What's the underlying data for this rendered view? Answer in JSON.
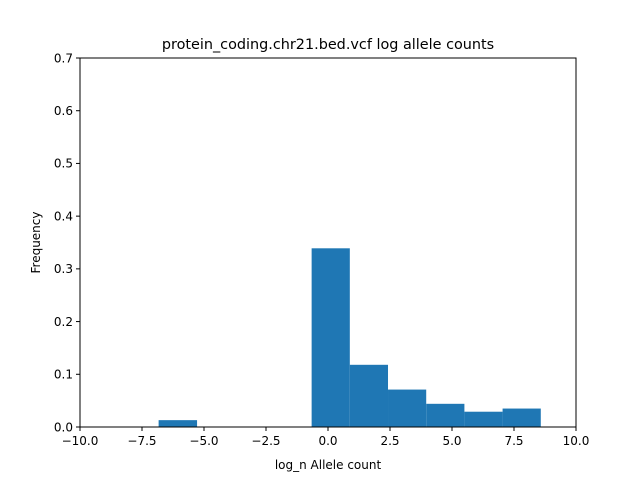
{
  "chart_data": {
    "type": "bar",
    "title": "protein_coding.chr21.bed.vcf log allele counts",
    "xlabel": "log_n Allele count",
    "ylabel": "Frequency",
    "xlim": [
      -10.0,
      10.0
    ],
    "ylim": [
      0.0,
      0.7
    ],
    "x_ticks": [
      -10.0,
      -7.5,
      -5.0,
      -2.5,
      0.0,
      2.5,
      5.0,
      7.5,
      10.0
    ],
    "x_tick_labels": [
      "−10.0",
      "−7.5",
      "−5.0",
      "−2.5",
      "0.0",
      "2.5",
      "5.0",
      "7.5",
      "10.0"
    ],
    "y_ticks": [
      0.0,
      0.1,
      0.2,
      0.3,
      0.4,
      0.5,
      0.6,
      0.7
    ],
    "y_tick_labels": [
      "0.0",
      "0.1",
      "0.2",
      "0.3",
      "0.4",
      "0.5",
      "0.6",
      "0.7"
    ],
    "grid": false,
    "bar_color": "#1f77b4",
    "bins": [
      {
        "x0": -6.83,
        "x1": -5.28,
        "value": 0.013
      },
      {
        "x0": -5.28,
        "x1": -3.74,
        "value": 0.0
      },
      {
        "x0": -3.74,
        "x1": -2.2,
        "value": 0.0
      },
      {
        "x0": -2.2,
        "x1": -0.66,
        "value": 0.0
      },
      {
        "x0": -0.66,
        "x1": 0.88,
        "value": 0.339
      },
      {
        "x0": 0.88,
        "x1": 2.42,
        "value": 0.118
      },
      {
        "x0": 2.42,
        "x1": 3.96,
        "value": 0.071
      },
      {
        "x0": 3.96,
        "x1": 5.5,
        "value": 0.044
      },
      {
        "x0": 5.5,
        "x1": 7.04,
        "value": 0.029
      },
      {
        "x0": 7.04,
        "x1": 8.58,
        "value": 0.035
      }
    ]
  }
}
